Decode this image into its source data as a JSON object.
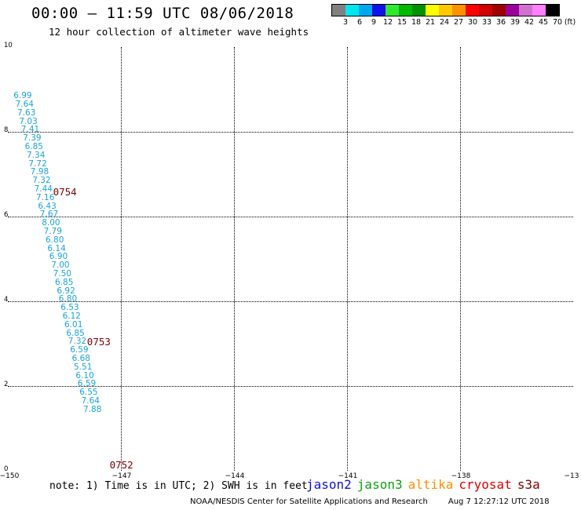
{
  "header": {
    "title": "00:00 – 11:59 UTC 08/06/2018",
    "subtitle": "12 hour collection of altimeter wave heights"
  },
  "legend": {
    "unit": "(ft)",
    "colors": [
      "#808080",
      "#00e5ee",
      "#00a8f0",
      "#1010e8",
      "#30e830",
      "#00b800",
      "#009000",
      "#ffff00",
      "#ffc800",
      "#ff9000",
      "#ff0000",
      "#d00000",
      "#a00000",
      "#9c009c",
      "#d070d0",
      "#ff80ff",
      "#000000"
    ],
    "labels": [
      "3",
      "6",
      "9",
      "12",
      "15",
      "18",
      "21",
      "24",
      "27",
      "30",
      "33",
      "36",
      "39",
      "42",
      "45",
      "70"
    ]
  },
  "axes": {
    "y_ticks": [
      "0",
      "2",
      "4",
      "6",
      "8",
      "10"
    ],
    "x_ticks": [
      "−150",
      "−147",
      "−144",
      "−141",
      "−138",
      "−13"
    ]
  },
  "observations": [
    {
      "v": "6.99",
      "lon": -149.85,
      "lat": 8.85
    },
    {
      "v": "7.64",
      "lon": -149.8,
      "lat": 8.65
    },
    {
      "v": "7.63",
      "lon": -149.75,
      "lat": 8.45
    },
    {
      "v": "7.03",
      "lon": -149.7,
      "lat": 8.25
    },
    {
      "v": "7.41",
      "lon": -149.65,
      "lat": 8.05
    },
    {
      "v": "7.39",
      "lon": -149.6,
      "lat": 7.85
    },
    {
      "v": "6.85",
      "lon": -149.55,
      "lat": 7.65
    },
    {
      "v": "7.34",
      "lon": -149.5,
      "lat": 7.45
    },
    {
      "v": "7.72",
      "lon": -149.45,
      "lat": 7.25
    },
    {
      "v": "7.98",
      "lon": -149.4,
      "lat": 7.05
    },
    {
      "v": "7.32",
      "lon": -149.35,
      "lat": 6.85
    },
    {
      "v": "7.44",
      "lon": -149.3,
      "lat": 6.65
    },
    {
      "v": "7.16",
      "lon": -149.25,
      "lat": 6.45
    },
    {
      "v": "6.43",
      "lon": -149.2,
      "lat": 6.25
    },
    {
      "v": "7.67",
      "lon": -149.15,
      "lat": 6.05
    },
    {
      "v": "8.00",
      "lon": -149.1,
      "lat": 5.85
    },
    {
      "v": "7.79",
      "lon": -149.05,
      "lat": 5.65
    },
    {
      "v": "6.80",
      "lon": -149.0,
      "lat": 5.45
    },
    {
      "v": "6.14",
      "lon": -148.95,
      "lat": 5.25
    },
    {
      "v": "6.90",
      "lon": -148.9,
      "lat": 5.05
    },
    {
      "v": "7.00",
      "lon": -148.85,
      "lat": 4.85
    },
    {
      "v": "7.50",
      "lon": -148.8,
      "lat": 4.65
    },
    {
      "v": "6.85",
      "lon": -148.75,
      "lat": 4.45
    },
    {
      "v": "6.92",
      "lon": -148.7,
      "lat": 4.25
    },
    {
      "v": "6.80",
      "lon": -148.65,
      "lat": 4.05
    },
    {
      "v": "6.53",
      "lon": -148.6,
      "lat": 3.85
    },
    {
      "v": "6.12",
      "lon": -148.55,
      "lat": 3.65
    },
    {
      "v": "6.01",
      "lon": -148.5,
      "lat": 3.45
    },
    {
      "v": "6.85",
      "lon": -148.45,
      "lat": 3.25
    },
    {
      "v": "7.32",
      "lon": -148.4,
      "lat": 3.05
    },
    {
      "v": "6.59",
      "lon": -148.35,
      "lat": 2.85
    },
    {
      "v": "6.68",
      "lon": -148.3,
      "lat": 2.65
    },
    {
      "v": "5.51",
      "lon": -148.25,
      "lat": 2.45
    },
    {
      "v": "6.10",
      "lon": -148.2,
      "lat": 2.25
    },
    {
      "v": "6.59",
      "lon": -148.15,
      "lat": 2.05
    },
    {
      "v": "6.55",
      "lon": -148.1,
      "lat": 1.85
    },
    {
      "v": "7.64",
      "lon": -148.05,
      "lat": 1.65
    },
    {
      "v": "7.88",
      "lon": -148.0,
      "lat": 1.45
    }
  ],
  "passes": [
    {
      "label": "0754",
      "lon": -148.8,
      "lat": 6.6
    },
    {
      "label": "0753",
      "lon": -147.9,
      "lat": 3.05
    },
    {
      "label": "0752",
      "lon": -147.3,
      "lat": 0.15
    }
  ],
  "note": "note: 1) Time is in UTC; 2) SWH is in feet",
  "satellites": [
    {
      "name": "jason2",
      "color": "#1010d0"
    },
    {
      "name": "jason3",
      "color": "#10a010"
    },
    {
      "name": "altika",
      "color": "#ff9000"
    },
    {
      "name": "cryosat",
      "color": "#e00000"
    },
    {
      "name": "s3a",
      "color": "#800000"
    }
  ],
  "footer": {
    "credit": "NOAA/NESDIS Center for Satellite Applications and Research",
    "timestamp": "Aug  7 12:27:12 UTC 2018"
  }
}
